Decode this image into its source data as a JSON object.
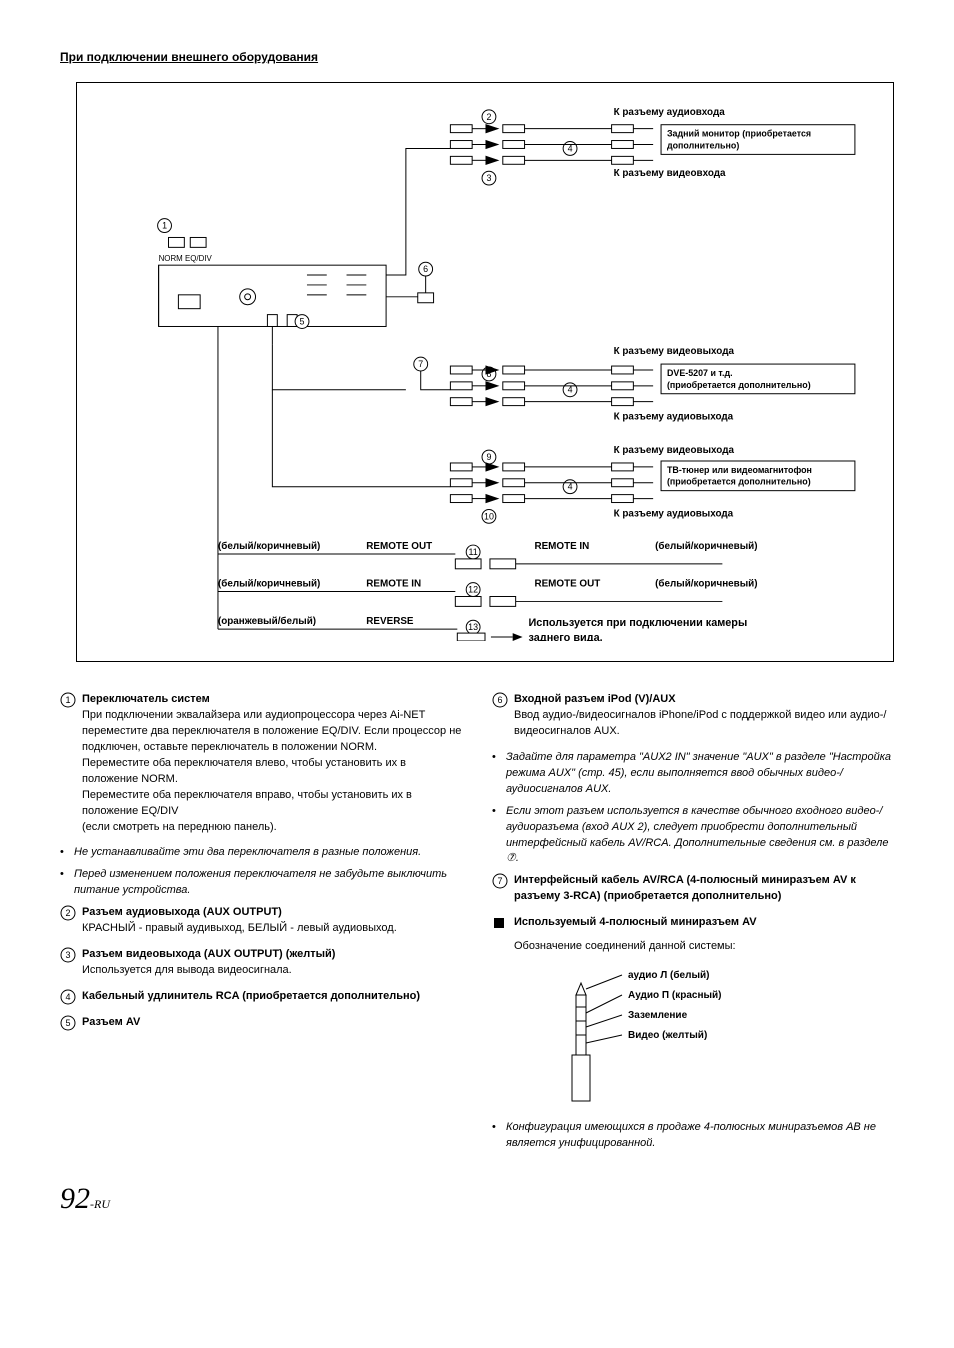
{
  "section_title": "При подключении внешнего оборудования",
  "diagram": {
    "labels": {
      "audio_in": "К разъему аудиовхода",
      "video_in": "К разъему видеовхода",
      "audio_out": "К разъему аудиовыхода",
      "video_out": "К разъему видеовыхода",
      "rear_monitor_l1": "Задний монитор (приобретается",
      "rear_monitor_l2": "дополнительно)",
      "dve_l1": "DVE-5207 и т.д.",
      "dve_l2": "(приобретается дополнительно)",
      "tv_l1": "ТВ-тюнер или видеомагнитофон",
      "tv_l2": "(приобретается дополнительно)",
      "wb": "(белый/коричневый)",
      "ow": "(оранжевый/белый)",
      "remote_out": "REMOTE OUT",
      "remote_in": "REMOTE IN",
      "reverse": "REVERSE",
      "camera_note": "Используется при подключении камеры заднего вида.",
      "norm_eqdiv": "NORM  EQ/DIV"
    }
  },
  "left_items": [
    {
      "num": "1",
      "title": "Переключатель систем",
      "body": "При подключении эквалайзера или аудиопроцессора через Ai-NET переместите два переключателя в положение EQ/DIV. Если процессор не подключен, оставьте переключатель в положении NORM.\nПереместите оба переключателя влево, чтобы установить их в положение NORM.\nПереместите оба переключателя вправо, чтобы установить их в положение EQ/DIV\n(если смотреть на переднюю панель)."
    }
  ],
  "left_bullets_a": [
    "Не устанавливайте эти два переключателя в разные положения.",
    "Перед изменением положения переключателя не забудьте выключить питание устройства."
  ],
  "left_items_b": [
    {
      "num": "2",
      "title": "Разъем аудиовыхода (AUX OUTPUT)",
      "body": "КРАСНЫЙ - правый аудивыход, БЕЛЫЙ - левый аудиовыход."
    },
    {
      "num": "3",
      "title": "Разъем видеовыхода (AUX OUTPUT) (желтый)",
      "body": "Используется для вывода видеосигнала."
    },
    {
      "num": "4",
      "title": "Кабельный удлинитель RCA (приобретается дополнительно)",
      "body": ""
    },
    {
      "num": "5",
      "title": "Разъем AV",
      "body": ""
    }
  ],
  "right_items_a": [
    {
      "num": "6",
      "title": "Входной разъем iPod (V)/AUX",
      "body": "Ввод аудио-/видеосигналов iPhone/iPod с поддержкой видео или аудио-/видеосигналов AUX."
    }
  ],
  "right_bullets_a": [
    "Задайте для параметра \"AUX2 IN\" значение \"AUX\" в разделе \"Настройка режима AUX\" (стр. 45), если выполняется ввод обычных видео-/аудиосигналов AUX.",
    "Если этот разъем используется в качестве обычного входного видео-/аудиоразъема (вход AUX 2), следует приобрести дополнительный интерфейсный кабель AV/RCA. Дополнительные сведения см. в разделе ⑦."
  ],
  "right_items_b": [
    {
      "num": "7",
      "title": "Интерфейсный кабель AV/RCA (4-полюсный миниразъем AV к разъему 3-RCA) (приобретается дополнительно)",
      "body": ""
    }
  ],
  "right_sq": {
    "title": "Используемый 4-полюсный миниразъем AV",
    "body": "Обозначение соединений данной системы:"
  },
  "mini_jack": {
    "lines": [
      "аудио Л (белый)",
      "Аудио П (красный)",
      "Заземление",
      "Видео (желтый)"
    ]
  },
  "right_bullets_b": [
    "Конфигурация имеющихся в продаже 4-полюсных миниразъемов AB не является унифицированной."
  ],
  "page_number": "92",
  "page_suffix": "-RU"
}
